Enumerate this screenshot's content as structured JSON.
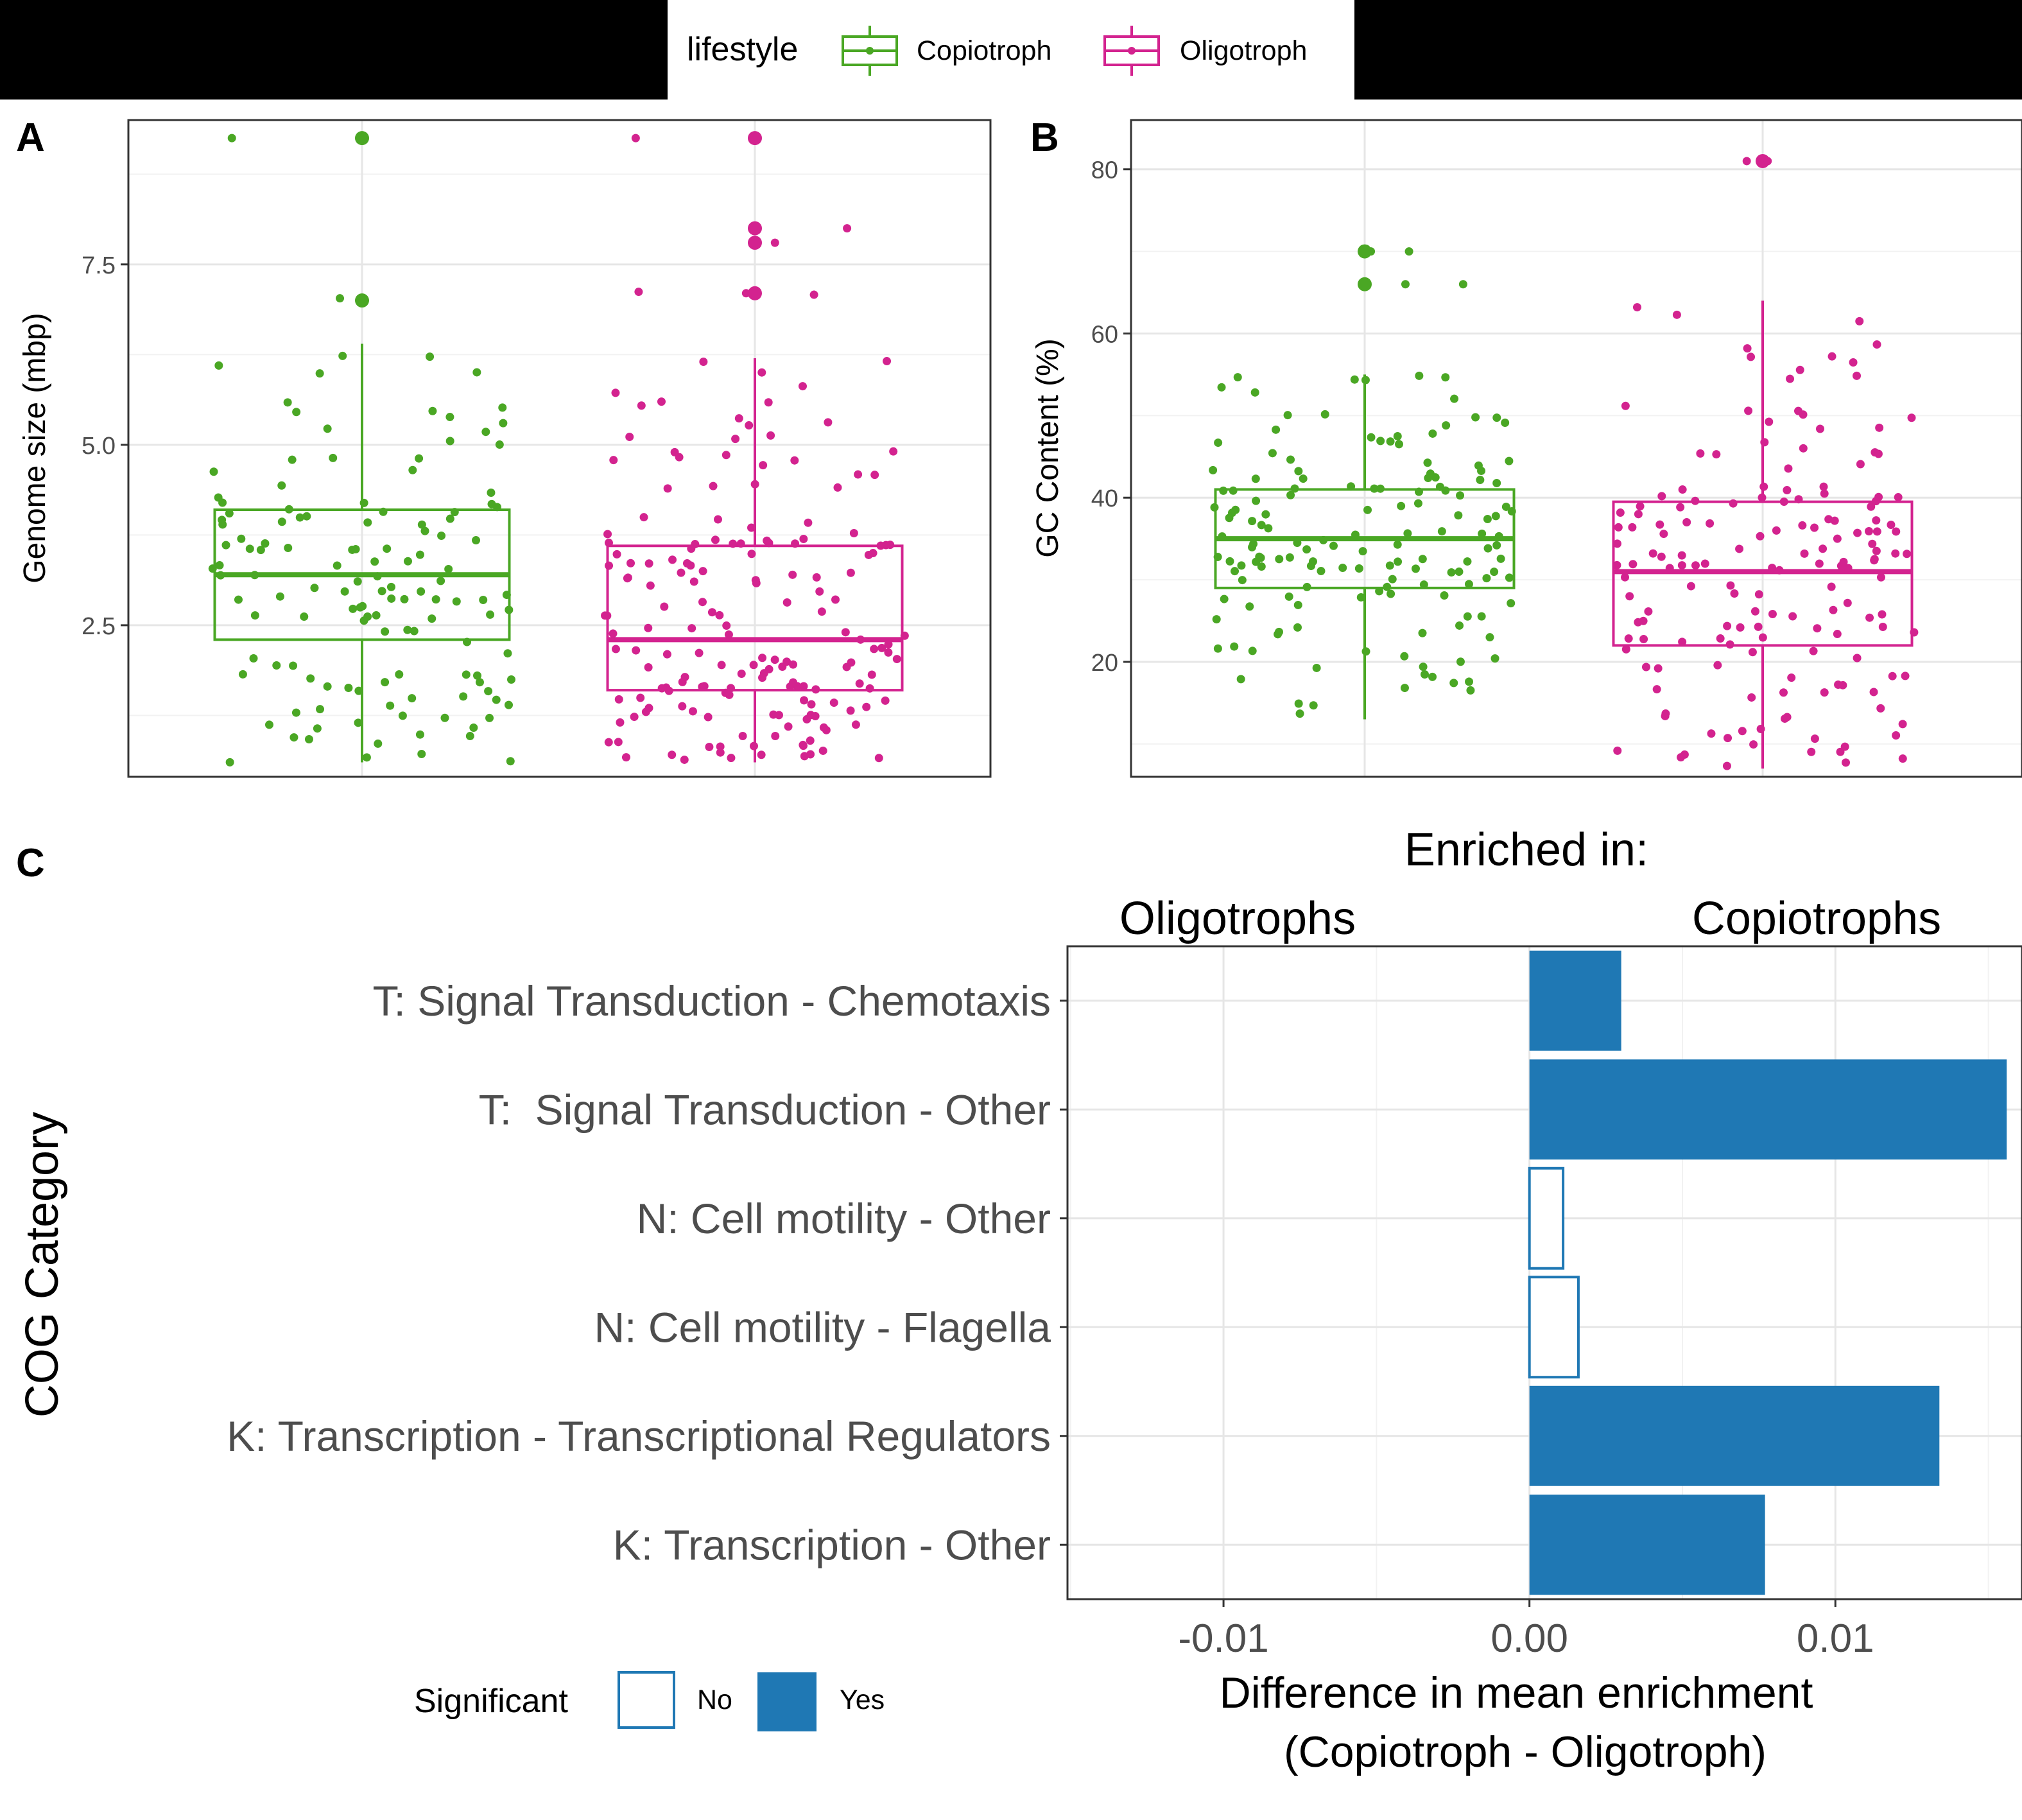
{
  "colors": {
    "copiotroph": "#4aa724",
    "oligotroph": "#d3238f",
    "sig_fill": "#1f78b4",
    "grid_major": "#e6e6e6",
    "grid_minor": "#f2f2f2",
    "header_band": "#000000"
  },
  "legend_top": {
    "title": "lifestyle",
    "items": [
      {
        "label": "Copiotroph",
        "color_key": "copiotroph"
      },
      {
        "label": "Oligotroph",
        "color_key": "oligotroph"
      }
    ]
  },
  "legend_bottom": {
    "title": "Significant",
    "items": [
      {
        "label": "No",
        "filled": false
      },
      {
        "label": "Yes",
        "filled": true
      }
    ]
  },
  "chart_data": [
    {
      "panel": "A",
      "type": "box",
      "ylabel": "Genome size (mbp)",
      "ylim": [
        0.4,
        9.5
      ],
      "yticks": [
        2.5,
        5.0,
        7.5
      ],
      "ytick_labels": [
        "2.5",
        "5.0",
        "7.5"
      ],
      "grid": true,
      "series": [
        {
          "name": "Copiotroph",
          "color_key": "copiotroph",
          "box": {
            "whisker_low": 0.6,
            "q1": 2.3,
            "median": 3.2,
            "q3": 4.1,
            "whisker_high": 6.4
          },
          "outliers": [
            7.0,
            9.25
          ],
          "n_points": 130,
          "point_range": [
            0.6,
            6.45
          ],
          "point_extra": [
            7.03,
            9.25
          ],
          "seed": 11
        },
        {
          "name": "Oligotroph",
          "color_key": "oligotroph",
          "box": {
            "whisker_low": 0.6,
            "q1": 1.6,
            "median": 2.3,
            "q3": 3.6,
            "whisker_high": 6.2
          },
          "outliers": [
            7.1,
            7.8,
            8.0,
            9.25
          ],
          "n_points": 170,
          "point_range": [
            0.6,
            6.2
          ],
          "point_extra": [
            7.1,
            7.12,
            7.8,
            8.0,
            9.25,
            7.08
          ],
          "seed": 23
        }
      ]
    },
    {
      "panel": "B",
      "type": "box",
      "ylabel": "GC Content (%)",
      "ylim": [
        6,
        86
      ],
      "yticks": [
        20,
        40,
        60,
        80
      ],
      "ytick_labels": [
        "20",
        "40",
        "60",
        "80"
      ],
      "grid": true,
      "series": [
        {
          "name": "Copiotroph",
          "color_key": "copiotroph",
          "box": {
            "whisker_low": 13,
            "q1": 29,
            "median": 35,
            "q3": 41,
            "whisker_high": 55
          },
          "outliers": [
            66,
            70
          ],
          "n_points": 150,
          "point_range": [
            13,
            55
          ],
          "point_extra": [
            66,
            70,
            66,
            70
          ],
          "seed": 37
        },
        {
          "name": "Oligotroph",
          "color_key": "oligotroph",
          "box": {
            "whisker_low": 7,
            "q1": 22,
            "median": 31,
            "q3": 39.5,
            "whisker_high": 64
          },
          "outliers": [
            81
          ],
          "n_points": 160,
          "point_range": [
            7,
            64
          ],
          "point_extra": [
            81,
            81
          ],
          "seed": 53
        }
      ]
    },
    {
      "panel": "C",
      "type": "bar",
      "orientation": "horizontal",
      "title": "Enriched in:",
      "side_labels": {
        "left": "Oligotrophs",
        "right": "Copiotrophs"
      },
      "ylabel": "COG Category",
      "xlabel_lines": [
        "Difference in mean enrichment",
        "(Copiotroph - Oligotroph)"
      ],
      "xlim": [
        -0.0151,
        0.0161
      ],
      "xticks": [
        -0.01,
        0.0,
        0.01
      ],
      "xtick_labels": [
        "-0.01",
        "0.00",
        "0.01"
      ],
      "categories": [
        "T: Signal Transduction - Chemotaxis",
        "T:  Signal Transduction - Other",
        "N: Cell motility - Other",
        "N: Cell motility - Flagella",
        "K: Transcription - Transcriptional Regulators",
        "K: Transcription - Other"
      ],
      "values": [
        0.003,
        0.0156,
        0.0011,
        0.0016,
        0.0134,
        0.0077
      ],
      "significant": [
        "Yes",
        "Yes",
        "No",
        "No",
        "Yes",
        "Yes"
      ]
    }
  ]
}
